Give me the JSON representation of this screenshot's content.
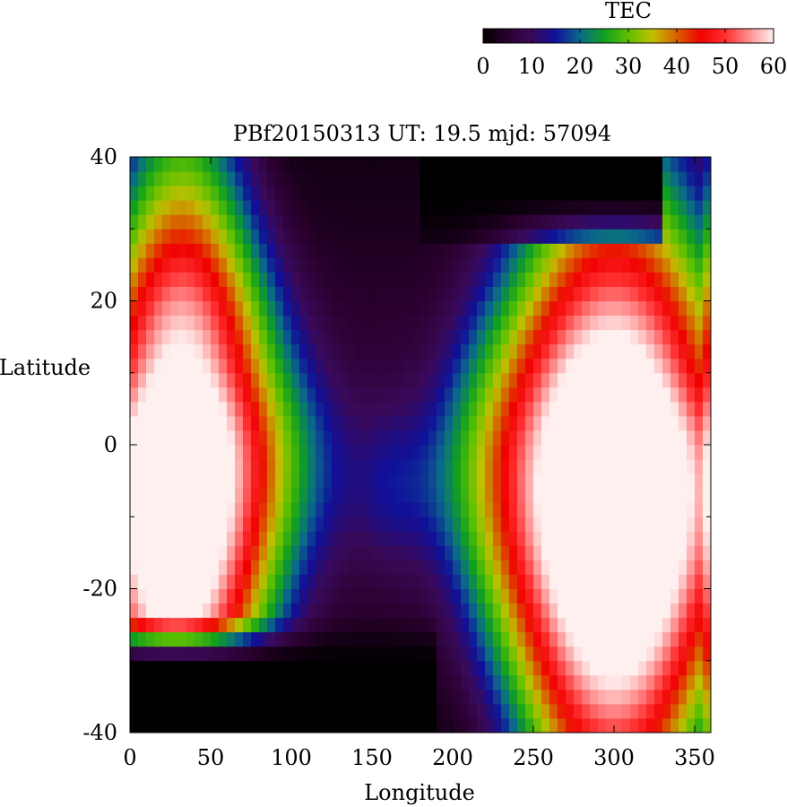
{
  "chart_data": {
    "type": "heatmap",
    "title": "PBf20150313  UT: 19.5  mjd: 57094",
    "xlabel": "Longitude",
    "ylabel": "Latitude",
    "xlim": [
      0,
      360
    ],
    "ylim": [
      -40,
      40
    ],
    "x_ticks": [
      "0",
      "50",
      "100",
      "150",
      "200",
      "250",
      "300",
      "350"
    ],
    "y_ticks": [
      "40",
      "20",
      "0",
      "-20",
      "-40"
    ],
    "colorbar": {
      "label": "TEC",
      "range": [
        0,
        60
      ],
      "ticks": [
        "0",
        "10",
        "20",
        "30",
        "40",
        "50",
        "60"
      ],
      "palette": [
        "#000000",
        "#2a002e",
        "#3a0a5a",
        "#10109a",
        "#0a6a8a",
        "#10a020",
        "#60c000",
        "#c0c000",
        "#d86000",
        "#f00000",
        "#ff3030",
        "#ff9090",
        "#fff0f0"
      ]
    },
    "grid_resolution": {
      "lon_step_deg": 5,
      "lat_step_deg": 2
    },
    "description_of_values": "Total Electron Content (TEC) on a longitude/latitude grid; equatorial anomaly crests near +/-15 deg latitude with peak values of ~60 TEC at longitudes 0-60 and 240-360, minimum (~0) at high latitudes and near longitude 150-180.",
    "features": {
      "dayside_crest_north_lat": 14,
      "dayside_crest_south_lat": -18,
      "trough_lon": 165,
      "west_peak_lon": 30,
      "east_peak_lon": 300
    }
  }
}
